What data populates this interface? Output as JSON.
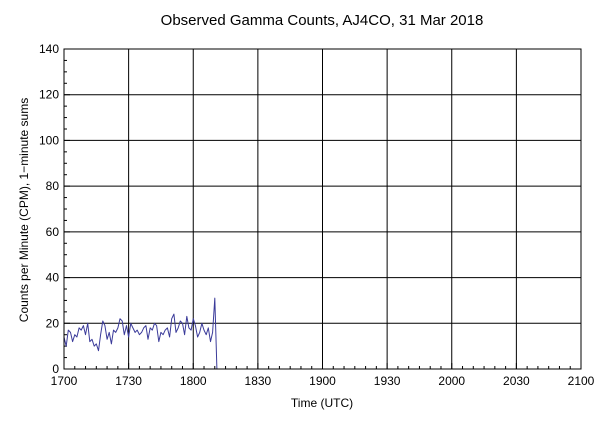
{
  "chart_data": {
    "type": "line",
    "title": "Observed Gamma Counts, AJ4CO, 31 Mar 2018",
    "xlabel": "Time (UTC)",
    "ylabel": "Counts per Minute (CPM), 1−minute sums",
    "x_tick_labels": [
      "1700",
      "1730",
      "1800",
      "1830",
      "1900",
      "1930",
      "2000",
      "2030",
      "2100"
    ],
    "y_tick_labels": [
      "0",
      "20",
      "40",
      "60",
      "80",
      "100",
      "120",
      "140"
    ],
    "xlim_minutes": [
      0,
      240
    ],
    "ylim": [
      0,
      140
    ],
    "grid": true,
    "series": [
      {
        "color": "#3b3b9a",
        "x_minutes": [
          0,
          1,
          2,
          3,
          4,
          5,
          6,
          7,
          8,
          9,
          10,
          11,
          12,
          13,
          14,
          15,
          16,
          17,
          18,
          19,
          20,
          21,
          22,
          23,
          24,
          25,
          26,
          27,
          28,
          29,
          30,
          31,
          32,
          33,
          34,
          35,
          36,
          37,
          38,
          39,
          40,
          41,
          42,
          43,
          44,
          45,
          46,
          47,
          48,
          49,
          50,
          51,
          52,
          53,
          54,
          55,
          56,
          57,
          58,
          59,
          60,
          61,
          62,
          63,
          64,
          65,
          66,
          67,
          68,
          69,
          70,
          71,
          72
        ],
        "values": [
          14,
          10,
          17,
          16,
          12,
          15,
          14,
          18,
          17,
          19,
          15,
          20,
          12,
          13,
          10,
          11,
          8,
          15,
          21,
          19,
          13,
          16,
          11,
          17,
          16,
          18,
          22,
          21,
          15,
          19,
          14,
          20,
          18,
          16,
          17,
          15,
          16,
          18,
          19,
          13,
          18,
          17,
          20,
          19,
          12,
          16,
          15,
          17,
          18,
          14,
          22,
          24,
          16,
          18,
          21,
          20,
          15,
          23,
          18,
          17,
          22,
          19,
          14,
          16,
          20,
          17,
          15,
          18,
          12,
          16,
          31,
          0,
          0
        ]
      }
    ]
  }
}
